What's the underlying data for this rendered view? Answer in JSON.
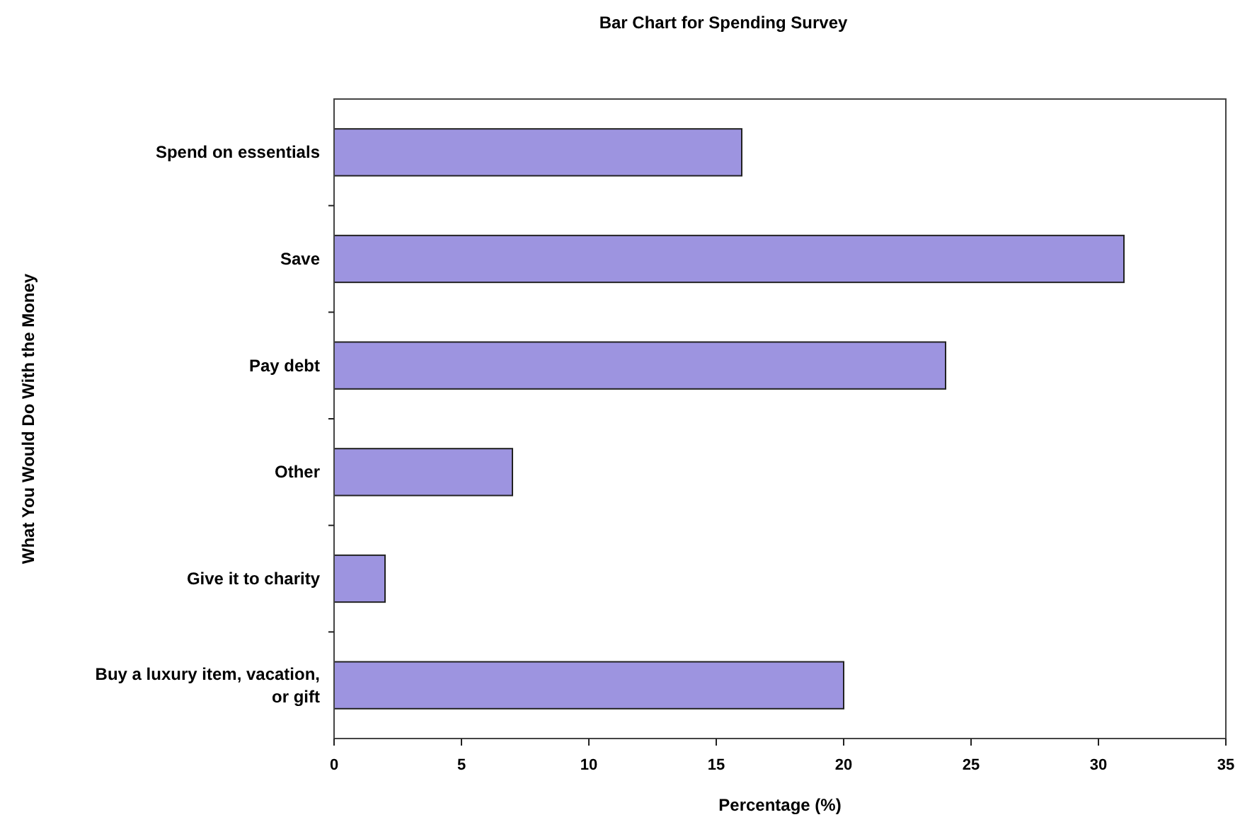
{
  "chart_data": {
    "type": "bar",
    "orientation": "horizontal",
    "title": "Bar Chart for Spending Survey",
    "xlabel": "Percentage (%)",
    "ylabel": "What You Would Do With the Money",
    "categories": [
      "Spend on essentials",
      "Save",
      "Pay debt",
      "Other",
      "Give it to charity",
      "Buy a luxury item, vacation, or gift"
    ],
    "values": [
      16,
      31,
      24,
      7,
      2,
      20
    ],
    "color": "#9d94e0",
    "xlim": [
      0,
      35
    ],
    "xticks": [
      0,
      5,
      10,
      15,
      20,
      25,
      30,
      35
    ],
    "grid": false
  }
}
